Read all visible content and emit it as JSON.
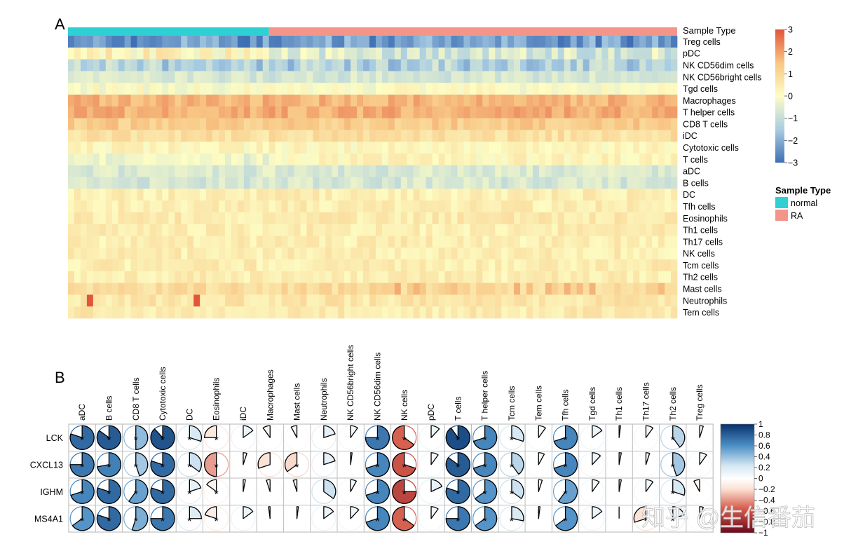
{
  "panels": {
    "a_label": "A",
    "b_label": "B"
  },
  "watermark": "知乎 @生信番茄",
  "colors": {
    "normal": "#2ed0d4",
    "ra": "#f4958a",
    "heat_stops": [
      "#3e6fb4",
      "#a9cde3",
      "#fdfdc4",
      "#f8c684",
      "#e2553b"
    ],
    "corr_stops": [
      "#6b0a1f",
      "#d55a4a",
      "#fbe0d2",
      "#ffffff",
      "#d3e6f2",
      "#4d90c6",
      "#08306b"
    ]
  },
  "chart_data": [
    {
      "type": "heatmap",
      "title": "",
      "annotation_label": "Sample Type",
      "rows": [
        "Treg cells",
        "pDC",
        "NK CD56dim cells",
        "NK CD56bright cells",
        "Tgd cells",
        "Macrophages",
        "T helper cells",
        "CD8 T cells",
        "iDC",
        "Cytotoxic cells",
        "T cells",
        "aDC",
        "B cells",
        "DC",
        "Tfh cells",
        "Eosinophils",
        "Th1 cells",
        "Th17 cells",
        "NK cells",
        "Tcm cells",
        "Th2 cells",
        "Mast cells",
        "Neutrophils",
        "Tem cells"
      ],
      "row_means": [
        -2.3,
        0.2,
        -1.3,
        -0.7,
        0.0,
        1.7,
        1.8,
        1.3,
        0.8,
        0.2,
        -0.3,
        -0.6,
        -0.7,
        0.4,
        0.4,
        0.5,
        0.4,
        0.4,
        0.4,
        0.4,
        0.4,
        0.9,
        0.6,
        0.5
      ],
      "n_samples": 97,
      "groups": [
        {
          "name": "normal",
          "count": 32
        },
        {
          "name": "RA",
          "count": 65
        }
      ],
      "highlights": [
        {
          "row": "Neutrophils",
          "samples": [
            3,
            20
          ],
          "value": 3.0
        }
      ],
      "color_range": [
        -3,
        3
      ],
      "colorbar_ticks": [
        "3",
        "2",
        "1",
        "0",
        "−1",
        "−2",
        "−3"
      ],
      "legend_title": "Sample Type",
      "legend_items": [
        "normal",
        "RA"
      ]
    },
    {
      "type": "heatmap",
      "subtype": "correlation-pie",
      "rows": [
        "LCK",
        "CXCL13",
        "IGHM",
        "MS4A1"
      ],
      "columns": [
        "aDC",
        "B cells",
        "CD8 T cells",
        "Cytotoxic cells",
        "DC",
        "Eosinophils",
        "iDC",
        "Macrophages",
        "Mast cells",
        "Neutrophils",
        "NK CD56bright cells",
        "NK CD56dim cells",
        "NK cells",
        "pDC",
        "T cells",
        "T helper cells",
        "Tcm cells",
        "Tem cells",
        "Tfh cells",
        "Tgd cells",
        "Th1 cells",
        "Th17 cells",
        "Th2 cells",
        "Treg cells"
      ],
      "values": [
        [
          0.8,
          0.85,
          0.5,
          0.88,
          0.3,
          -0.25,
          0.15,
          -0.1,
          -0.08,
          0.2,
          0.1,
          0.75,
          -0.65,
          0.12,
          0.9,
          0.7,
          0.3,
          0.1,
          0.7,
          0.15,
          0.02,
          0.1,
          0.4,
          0.05
        ],
        [
          0.75,
          0.72,
          0.45,
          0.8,
          0.35,
          -0.5,
          0.05,
          -0.3,
          -0.35,
          0.2,
          0.02,
          0.7,
          -0.7,
          0.1,
          0.85,
          0.7,
          0.4,
          0.08,
          0.7,
          0.12,
          0.03,
          0.05,
          0.45,
          0.1
        ],
        [
          0.7,
          0.8,
          0.6,
          0.8,
          0.2,
          -0.15,
          0.03,
          -0.05,
          -0.05,
          0.35,
          0.08,
          0.7,
          -0.75,
          0.18,
          0.8,
          0.65,
          0.35,
          0.05,
          0.6,
          0.1,
          0.03,
          0.1,
          0.3,
          -0.08
        ],
        [
          0.65,
          0.8,
          0.55,
          0.75,
          0.25,
          -0.2,
          0.15,
          -0.02,
          0.02,
          0.15,
          0.12,
          0.7,
          -0.65,
          0.1,
          0.75,
          0.65,
          0.28,
          0.02,
          0.65,
          0.15,
          0.0,
          -0.3,
          0.2,
          0.05
        ]
      ],
      "significant_cols": [
        "aDC",
        "B cells",
        "CD8 T cells",
        "Cytotoxic cells",
        "DC",
        "Eosinophils",
        "NK CD56dim cells",
        "NK cells",
        "T cells",
        "T helper cells",
        "Tcm cells",
        "Tfh cells",
        "Th2 cells"
      ],
      "extra_significant": [
        {
          "row": "CXCL13",
          "col": "Mast cells"
        },
        {
          "row": "MS4A1",
          "col": "Th17 cells"
        }
      ],
      "significance_mark": "*",
      "color_range": [
        -1,
        1
      ],
      "colorbar_ticks": [
        "1",
        "0.8",
        "0.6",
        "0.4",
        "0.2",
        "0",
        "−0.2",
        "−0.4",
        "−0.6",
        "−0.8",
        "−1"
      ]
    }
  ]
}
